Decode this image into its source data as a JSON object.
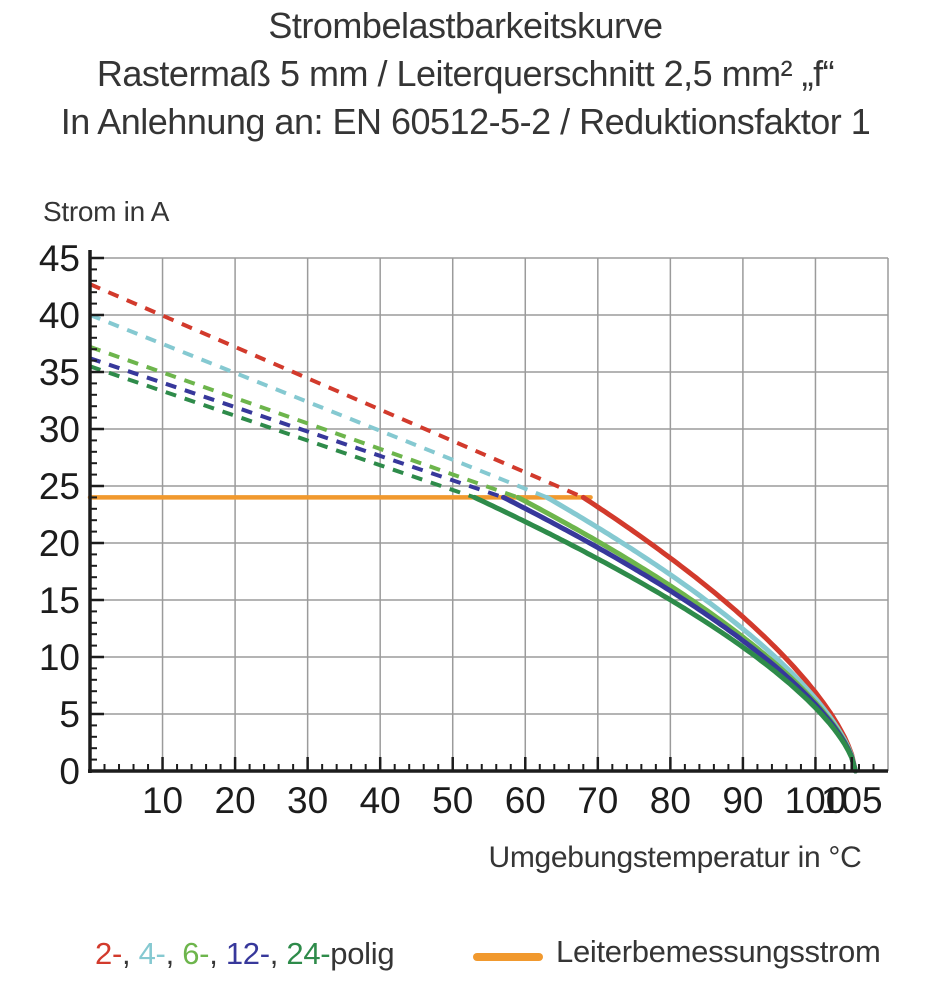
{
  "title": {
    "line1": "Strombelastbarkeitskurve",
    "line2": "Rastermaß 5 mm / Leiterquerschnitt 2,5 mm² „f“",
    "line3": "In Anlehnung an: EN 60512-5-2 / Reduktionsfaktor 1"
  },
  "chart_data": {
    "type": "line",
    "title": "Strombelastbarkeitskurve",
    "xlabel": "Umgebungstemperatur in °C",
    "ylabel": "Strom in A",
    "xlim": [
      0,
      110
    ],
    "ylim": [
      0,
      45
    ],
    "x_major_ticks": [
      10,
      20,
      30,
      40,
      50,
      60,
      70,
      80,
      90,
      100,
      105
    ],
    "x_minor_step": 2,
    "y_major_ticks": [
      0,
      5,
      10,
      15,
      20,
      25,
      30,
      35,
      40,
      45
    ],
    "y_minor_step": 1,
    "grid": true,
    "rated_current_A": 24,
    "max_temperature_C": 105,
    "curve_exponent": 0.65,
    "terminal_temperature_C": 105.5,
    "reference_line": {
      "label": "Leiterbemessungsstrom",
      "color": "#f1992e",
      "value_A": 24,
      "extends_to_C": 69
    },
    "series": [
      {
        "name": "2-polig",
        "color": "#d23a2c",
        "style": "dashed derating line, solid after knee",
        "current_at_0C_A": 42.7,
        "derating_knee_C": 68,
        "points": [
          [
            0,
            42.7
          ],
          [
            10,
            39.9
          ],
          [
            20,
            37.2
          ],
          [
            30,
            34.5
          ],
          [
            40,
            31.7
          ],
          [
            50,
            29.0
          ],
          [
            60,
            26.2
          ],
          [
            68,
            24.0
          ],
          [
            70,
            23.2
          ],
          [
            75,
            21.0
          ],
          [
            80,
            18.7
          ],
          [
            85,
            16.2
          ],
          [
            90,
            13.5
          ],
          [
            95,
            10.5
          ],
          [
            100,
            6.9
          ],
          [
            105,
            0
          ]
        ]
      },
      {
        "name": "4-polig",
        "color": "#85c9d1",
        "style": "dashed derating line, solid after knee",
        "current_at_0C_A": 40.0,
        "derating_knee_C": 63,
        "points": [
          [
            0,
            40.0
          ],
          [
            10,
            37.5
          ],
          [
            20,
            34.9
          ],
          [
            30,
            32.4
          ],
          [
            40,
            29.8
          ],
          [
            50,
            27.3
          ],
          [
            60,
            24.8
          ],
          [
            63,
            24.0
          ],
          [
            70,
            21.3
          ],
          [
            80,
            17.2
          ],
          [
            90,
            12.5
          ],
          [
            100,
            6.4
          ],
          [
            105,
            0
          ]
        ]
      },
      {
        "name": "6-polig",
        "color": "#6db54c",
        "style": "dashed derating line, solid after knee",
        "current_at_0C_A": 37.2,
        "derating_knee_C": 59,
        "points": [
          [
            0,
            37.2
          ],
          [
            10,
            35.0
          ],
          [
            20,
            32.7
          ],
          [
            30,
            30.5
          ],
          [
            40,
            28.3
          ],
          [
            50,
            26.0
          ],
          [
            59,
            24.0
          ],
          [
            70,
            20.1
          ],
          [
            80,
            16.1
          ],
          [
            90,
            11.8
          ],
          [
            100,
            6.0
          ],
          [
            105,
            0
          ]
        ]
      },
      {
        "name": "12-polig",
        "color": "#37389b",
        "style": "dashed derating line, solid after knee",
        "current_at_0C_A": 36.2,
        "derating_knee_C": 57,
        "points": [
          [
            0,
            36.2
          ],
          [
            10,
            34.1
          ],
          [
            20,
            31.9
          ],
          [
            30,
            29.8
          ],
          [
            40,
            27.6
          ],
          [
            50,
            25.5
          ],
          [
            57,
            24.0
          ],
          [
            70,
            19.6
          ],
          [
            80,
            15.8
          ],
          [
            90,
            11.4
          ],
          [
            100,
            5.8
          ],
          [
            105,
            0
          ]
        ]
      },
      {
        "name": "24-polig",
        "color": "#2e8b4a",
        "style": "dashed derating line, solid after knee",
        "current_at_0C_A": 35.5,
        "derating_knee_C": 53,
        "points": [
          [
            0,
            35.5
          ],
          [
            10,
            33.3
          ],
          [
            20,
            31.2
          ],
          [
            30,
            29.0
          ],
          [
            40,
            26.8
          ],
          [
            50,
            24.7
          ],
          [
            53,
            24.0
          ],
          [
            70,
            18.6
          ],
          [
            80,
            15.0
          ],
          [
            90,
            10.9
          ],
          [
            100,
            5.5
          ],
          [
            105,
            0
          ]
        ]
      }
    ]
  },
  "legend": {
    "poles": {
      "items": [
        {
          "label": "2-",
          "color": "#d23a2c"
        },
        {
          "label": "4-",
          "color": "#85c9d1"
        },
        {
          "label": "6-",
          "color": "#6db54c"
        },
        {
          "label": "12-",
          "color": "#37389b"
        },
        {
          "label": "24-",
          "color": "#2e8b4a"
        }
      ],
      "separator": ", ",
      "suffix": "polig",
      "text_color": "#353535"
    },
    "reference": {
      "label": "Leiterbemessungsstrom",
      "color": "#f1992e"
    }
  },
  "style_colors": {
    "grid": "#9b9b9b",
    "axis": "#1c1c1c",
    "tick_label": "#1c1c1c"
  }
}
